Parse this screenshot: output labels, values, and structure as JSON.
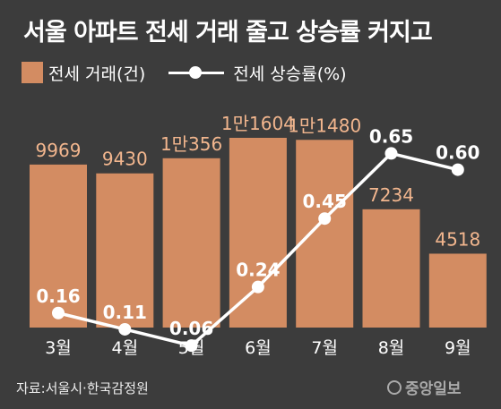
{
  "chart_data": {
    "type": "bar",
    "title": "서울 아파트 전세 거래 줄고 상승률 커지고",
    "categories": [
      "3월",
      "4월",
      "5월",
      "6월",
      "7월",
      "8월",
      "9월"
    ],
    "series": [
      {
        "name": "전세 거래(건)",
        "type": "bar",
        "values": [
          9969,
          9430,
          10356,
          11604,
          11480,
          7234,
          4518
        ],
        "labels": [
          "9969",
          "9430",
          "1만356",
          "1만1604",
          "1만1480",
          "7234",
          "4518"
        ],
        "color": "#d38c62"
      },
      {
        "name": "전세 상승률(%)",
        "type": "line",
        "values": [
          0.16,
          0.11,
          0.06,
          0.24,
          0.45,
          0.65,
          0.6
        ],
        "labels": [
          "0.16",
          "0.11",
          "0.06",
          "0.24",
          "0.45",
          "0.65",
          "0.60"
        ],
        "color": "#ffffff"
      }
    ],
    "colors": {
      "background": "#3c3c3c",
      "bar_label": "#f2b68e",
      "text": "#ffffff"
    }
  },
  "title": "서울 아파트 전세 거래 줄고 상승률 커지고",
  "legend": {
    "bar_label": "전세 거래(건)",
    "line_label": "전세 상승률(%)"
  },
  "source": "자료:서울시·한국감정원",
  "logo": "중앙일보"
}
